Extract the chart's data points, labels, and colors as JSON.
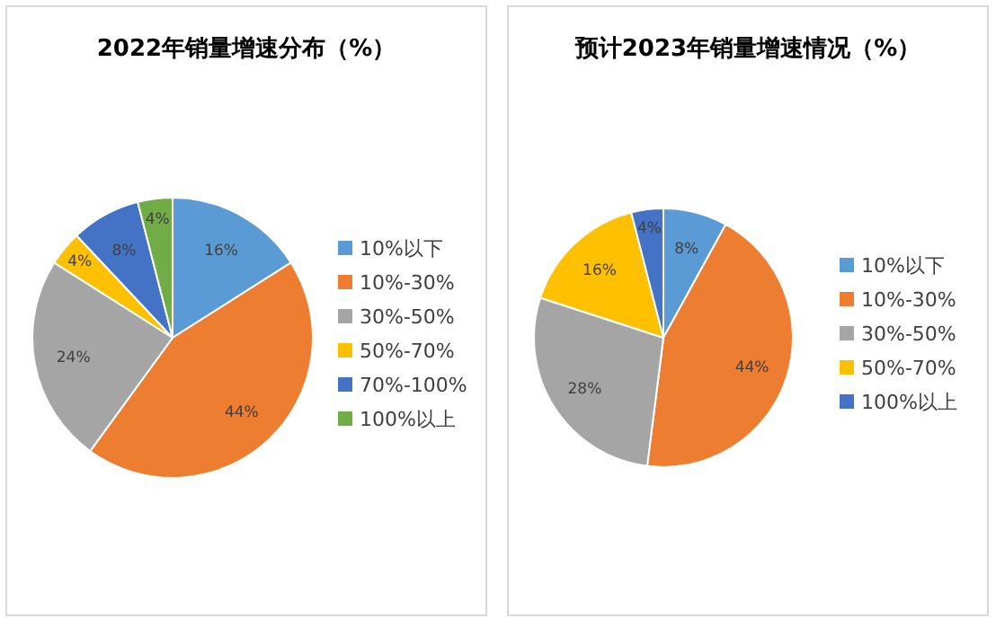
{
  "chart_data": [
    {
      "type": "pie",
      "title": "2022年销量增速分布（%）",
      "categories": [
        "10%以下",
        "10%-30%",
        "30%-50%",
        "50%-70%",
        "70%-100%",
        "100%以上"
      ],
      "values": [
        16,
        44,
        24,
        4,
        8,
        4
      ],
      "value_labels": [
        "16%",
        "44%",
        "24%",
        "4%",
        "8%",
        "4%"
      ],
      "colors": [
        "#5b9bd5",
        "#ed7d31",
        "#a5a5a5",
        "#ffc000",
        "#4472c4",
        "#70ad47"
      ],
      "legend": "right"
    },
    {
      "type": "pie",
      "title": "预计2023年销量增速情况（%）",
      "categories": [
        "10%以下",
        "10%-30%",
        "30%-50%",
        "50%-70%",
        "100%以上"
      ],
      "values": [
        8,
        44,
        28,
        16,
        4
      ],
      "value_labels": [
        "8%",
        "44%",
        "28%",
        "16%",
        "4%"
      ],
      "colors": [
        "#5b9bd5",
        "#ed7d31",
        "#a5a5a5",
        "#ffc000",
        "#4472c4"
      ],
      "legend": "right"
    }
  ]
}
